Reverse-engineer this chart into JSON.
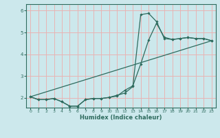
{
  "xlabel": "Humidex (Indice chaleur)",
  "bg_color": "#cce8ec",
  "grid_color": "#e8b4b4",
  "line_color": "#2e6b5e",
  "xlim": [
    -0.5,
    23.5
  ],
  "ylim": [
    1.55,
    6.3
  ],
  "yticks": [
    2,
    3,
    4,
    5,
    6
  ],
  "xticks": [
    0,
    1,
    2,
    3,
    4,
    5,
    6,
    7,
    8,
    9,
    10,
    11,
    12,
    13,
    14,
    15,
    16,
    17,
    18,
    19,
    20,
    21,
    22,
    23
  ],
  "line1_x": [
    0,
    1,
    2,
    3,
    4,
    5,
    6,
    7,
    8,
    9,
    10,
    11,
    12,
    13,
    14,
    15,
    16,
    17,
    18,
    19,
    20,
    21,
    22,
    23
  ],
  "line1_y": [
    2.05,
    1.92,
    1.92,
    1.97,
    1.82,
    1.62,
    1.62,
    1.92,
    1.97,
    1.97,
    2.02,
    2.08,
    2.35,
    2.55,
    3.55,
    4.65,
    5.42,
    4.78,
    4.68,
    4.72,
    4.77,
    4.72,
    4.72,
    4.62
  ],
  "line2_x": [
    0,
    1,
    2,
    3,
    4,
    5,
    6,
    7,
    8,
    9,
    10,
    11,
    12,
    13,
    14,
    15,
    16,
    17,
    18,
    19,
    20,
    21,
    22,
    23
  ],
  "line2_y": [
    2.05,
    1.92,
    1.92,
    1.97,
    1.82,
    1.62,
    1.62,
    1.92,
    1.97,
    1.97,
    2.02,
    2.12,
    2.22,
    2.52,
    5.82,
    5.88,
    5.5,
    4.72,
    4.68,
    4.72,
    4.77,
    4.72,
    4.72,
    4.62
  ],
  "line3_x": [
    0,
    23
  ],
  "line3_y": [
    2.05,
    4.62
  ]
}
